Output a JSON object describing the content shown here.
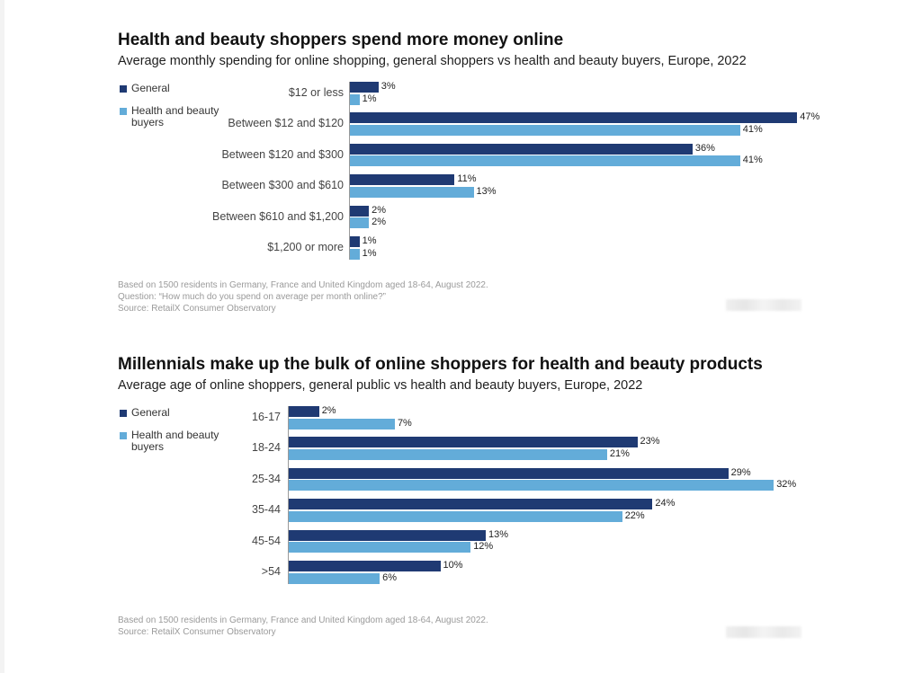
{
  "colors": {
    "general": "#1f3a73",
    "health": "#63acd9"
  },
  "chart_data": [
    {
      "type": "bar",
      "orientation": "horizontal",
      "title": "Health and beauty shoppers spend more money online",
      "subtitle": "Average monthly spending for online shopping, general shoppers vs health and beauty buyers, Europe, 2022",
      "categories": [
        "$12 or less",
        "Between $12 and $120",
        "Between $120 and $300",
        "Between $300 and $610",
        "Between $610 and $1,200",
        "$1,200 or more"
      ],
      "series": [
        {
          "name": "General",
          "values": [
            3,
            47,
            36,
            11,
            2,
            1
          ],
          "labels": [
            "3%",
            "47%",
            "36%",
            "11%",
            "2%",
            "1%"
          ]
        },
        {
          "name": "Health and beauty buyers",
          "values": [
            1,
            41,
            41,
            13,
            2,
            1
          ],
          "labels": [
            "1%",
            "41%",
            "41%",
            "13%",
            "2%",
            "1%"
          ]
        }
      ],
      "legend_position": "left",
      "notes": [
        "Based on 1500 residents in Germany, France and United Kingdom aged 18-64, August 2022.",
        "Question: “How much do you spend on average per month online?”",
        "Source: RetailX Consumer Observatory"
      ]
    },
    {
      "type": "bar",
      "orientation": "horizontal",
      "title": "Millennials make up the bulk of online shoppers for health and beauty products",
      "subtitle": "Average age of online shoppers, general public vs health and beauty buyers, Europe, 2022",
      "categories": [
        "16-17",
        "18-24",
        "25-34",
        "35-44",
        "45-54",
        ">54"
      ],
      "series": [
        {
          "name": "General",
          "values": [
            2,
            23,
            29,
            24,
            13,
            10
          ],
          "labels": [
            "2%",
            "23%",
            "29%",
            "24%",
            "13%",
            "10%"
          ]
        },
        {
          "name": "Health and beauty buyers",
          "values": [
            7,
            21,
            32,
            22,
            12,
            6
          ],
          "labels": [
            "7%",
            "21%",
            "32%",
            "22%",
            "12%",
            "6%"
          ]
        }
      ],
      "legend_position": "left",
      "notes": [
        "Based on 1500 residents in Germany, France and United Kingdom aged 18-64, August 2022.",
        "Source: RetailX Consumer Observatory"
      ]
    }
  ]
}
